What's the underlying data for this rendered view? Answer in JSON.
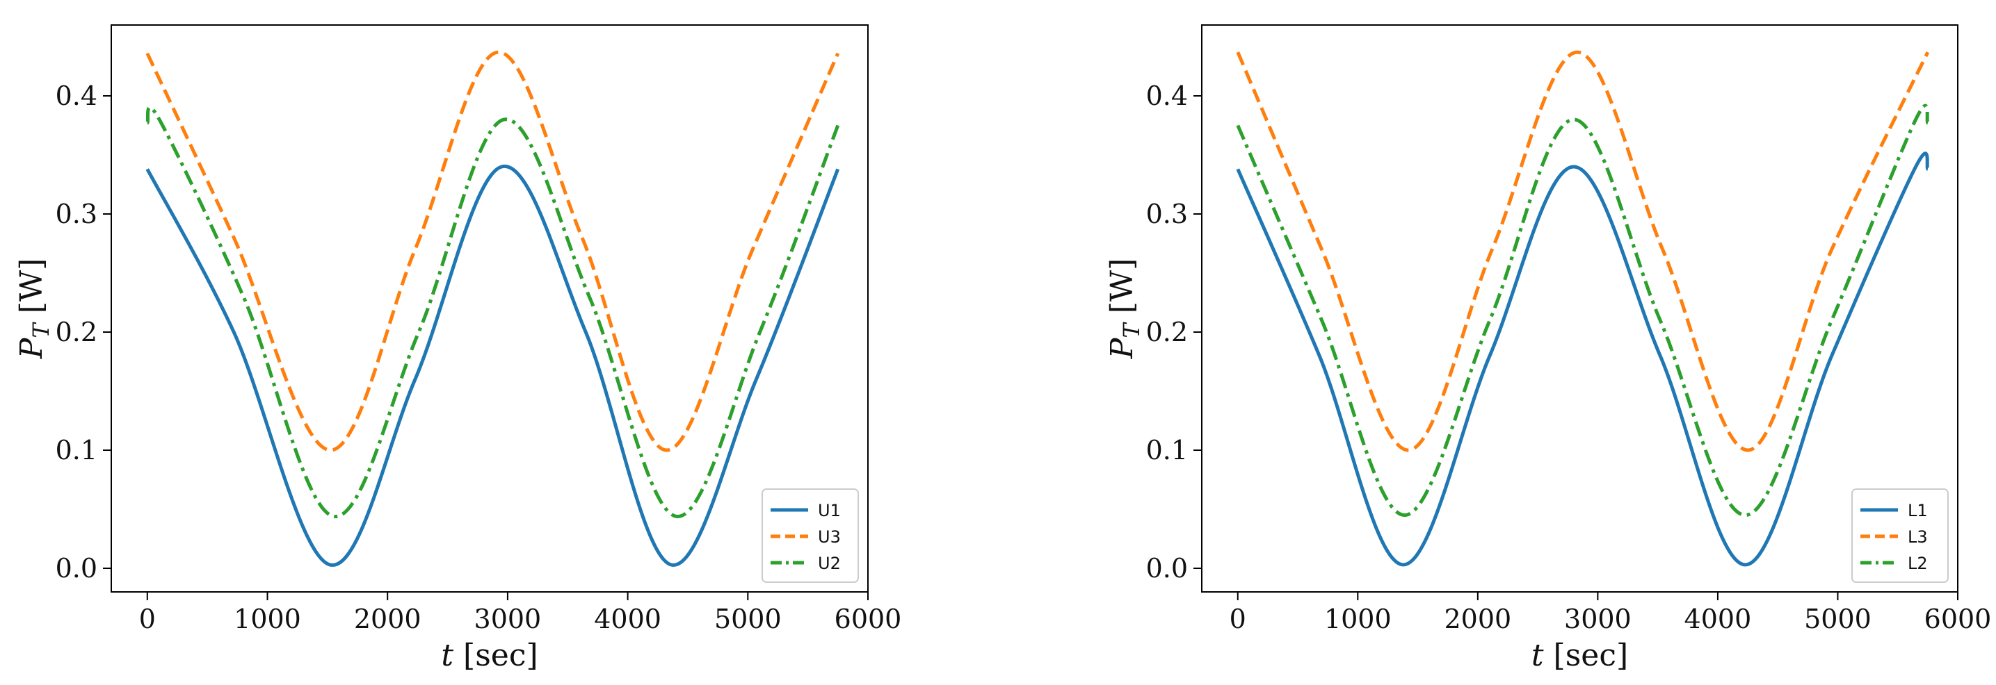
{
  "chart_data": [
    {
      "type": "line",
      "xlabel": {
        "var": "t",
        "unit": "[sec]"
      },
      "ylabel": {
        "var": "P",
        "sub": "T",
        "unit": "[W]"
      },
      "xlim": [
        -300,
        6000
      ],
      "ylim": [
        -0.02,
        0.46
      ],
      "xticks": [
        0,
        1000,
        2000,
        3000,
        4000,
        5000,
        6000
      ],
      "yticks": [
        0.0,
        0.1,
        0.2,
        0.3,
        0.4
      ],
      "xtick_labels": [
        "0",
        "1000",
        "2000",
        "3000",
        "4000",
        "5000",
        "6000"
      ],
      "ytick_labels": [
        "0.0",
        "0.1",
        "0.2",
        "0.3",
        "0.4"
      ],
      "legend_position": "lower-right",
      "series": [
        {
          "name": "U1",
          "color": "#1f77b4",
          "style": "solid",
          "x": [
            0,
            720,
            1520,
            2230,
            2950,
            3650,
            4360,
            5070,
            5750
          ],
          "y": [
            0.338,
            0.2,
            0.003,
            0.16,
            0.34,
            0.2,
            0.003,
            0.16,
            0.338
          ]
        },
        {
          "name": "U3",
          "color": "#ff7f0e",
          "style": "dashed",
          "x": [
            0,
            720,
            1520,
            2230,
            2920,
            3620,
            4320,
            5040,
            5750
          ],
          "y": [
            0.436,
            0.28,
            0.1,
            0.27,
            0.437,
            0.28,
            0.1,
            0.27,
            0.436
          ]
        },
        {
          "name": "U2",
          "color": "#2ca02c",
          "style": "dashdot",
          "x": [
            0,
            100,
            800,
            1550,
            2260,
            2970,
            3680,
            4400,
            5100,
            5750
          ],
          "y": [
            0.377,
            0.38,
            0.23,
            0.044,
            0.2,
            0.38,
            0.23,
            0.044,
            0.2,
            0.375
          ]
        }
      ]
    },
    {
      "type": "line",
      "xlabel": {
        "var": "t",
        "unit": "[sec]"
      },
      "ylabel": {
        "var": "P",
        "sub": "T",
        "unit": "[W]"
      },
      "xlim": [
        -300,
        6000
      ],
      "ylim": [
        -0.02,
        0.46
      ],
      "xticks": [
        0,
        1000,
        2000,
        3000,
        4000,
        5000,
        6000
      ],
      "yticks": [
        0.0,
        0.1,
        0.2,
        0.3,
        0.4
      ],
      "xtick_labels": [
        "0",
        "1000",
        "2000",
        "3000",
        "4000",
        "5000",
        "6000"
      ],
      "ytick_labels": [
        "0.0",
        "0.1",
        "0.2",
        "0.3",
        "0.4"
      ],
      "legend_position": "lower-right",
      "series": [
        {
          "name": "L1",
          "color": "#1f77b4",
          "style": "solid",
          "x": [
            0,
            680,
            1380,
            2100,
            2800,
            3520,
            4230,
            4950,
            5650,
            5750
          ],
          "y": [
            0.338,
            0.18,
            0.003,
            0.18,
            0.34,
            0.18,
            0.003,
            0.18,
            0.34,
            0.338
          ]
        },
        {
          "name": "L3",
          "color": "#ff7f0e",
          "style": "dashed",
          "x": [
            0,
            700,
            1420,
            2120,
            2830,
            3540,
            4250,
            4950,
            5750
          ],
          "y": [
            0.437,
            0.27,
            0.1,
            0.27,
            0.437,
            0.27,
            0.1,
            0.27,
            0.437
          ]
        },
        {
          "name": "L2",
          "color": "#2ca02c",
          "style": "dashdot",
          "x": [
            0,
            700,
            1390,
            2100,
            2800,
            3520,
            4230,
            4950,
            5650,
            5750
          ],
          "y": [
            0.375,
            0.21,
            0.045,
            0.21,
            0.38,
            0.21,
            0.045,
            0.21,
            0.38,
            0.377
          ]
        }
      ]
    }
  ]
}
